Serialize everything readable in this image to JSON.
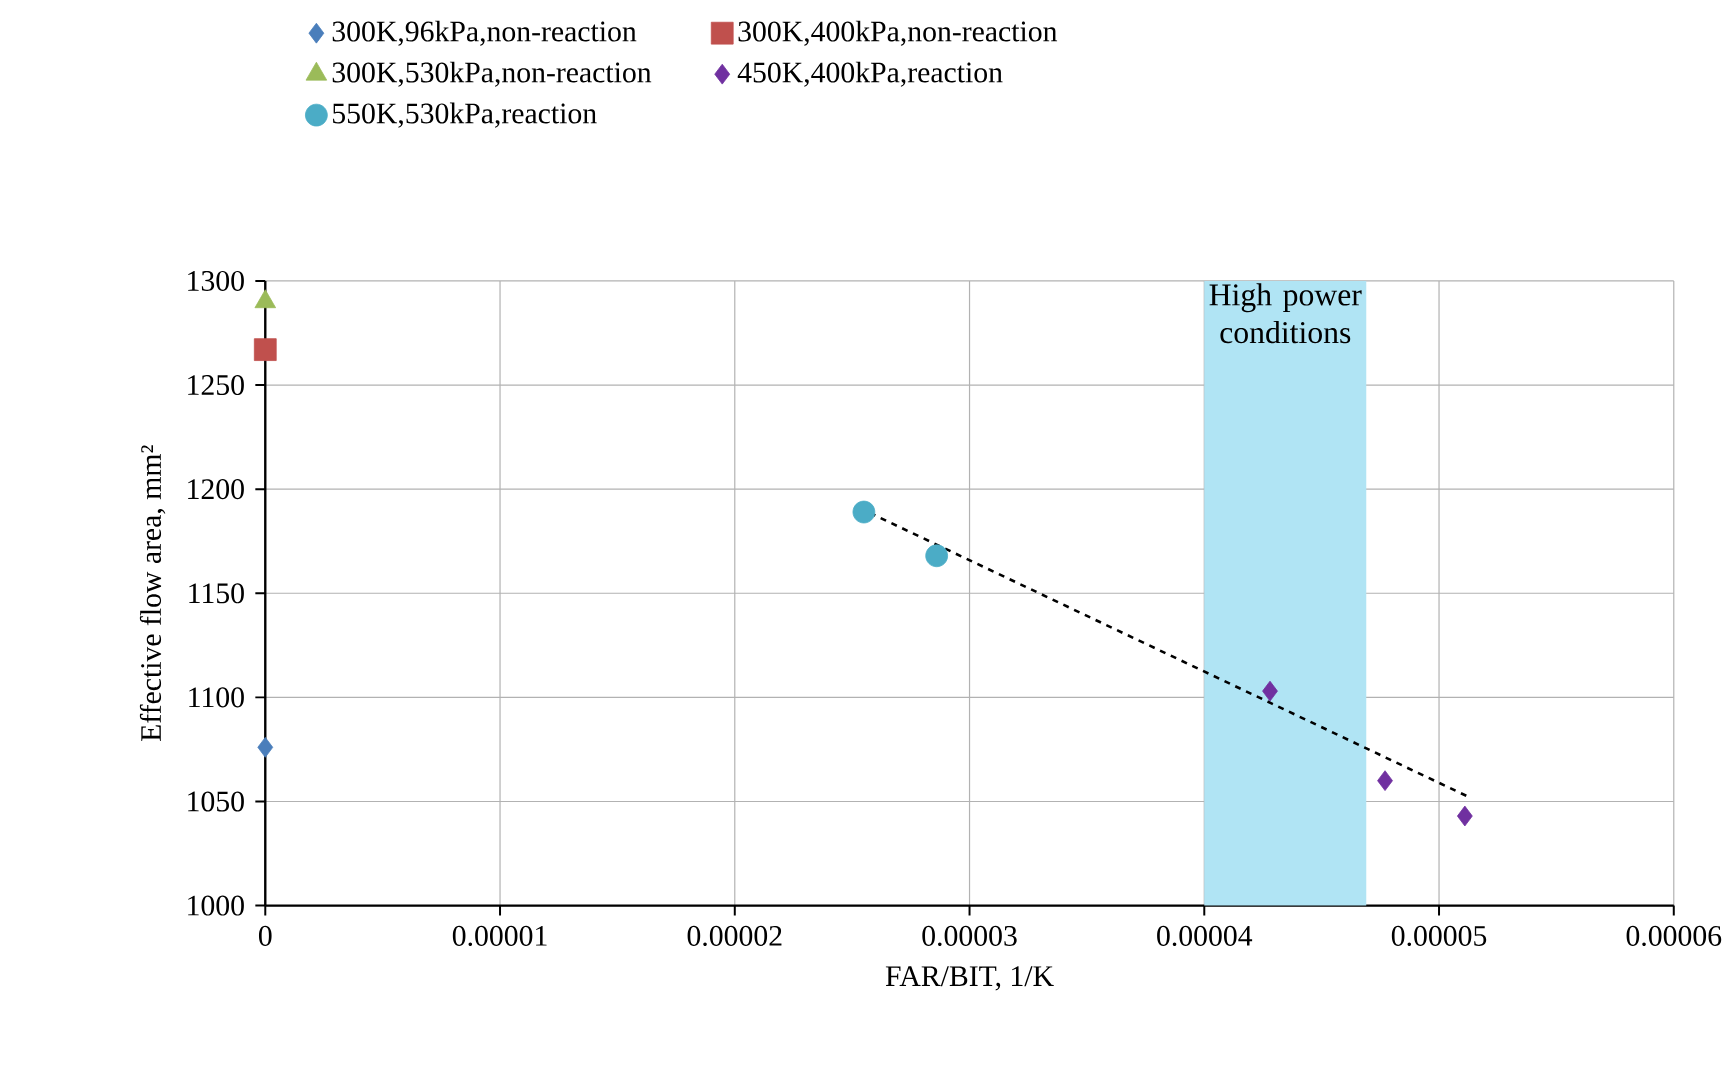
{
  "chart_data": {
    "type": "scatter",
    "xlabel": "FAR/BIT, 1/K",
    "ylabel": "Effective flow area, mm²",
    "xlim": [
      0,
      6e-05
    ],
    "ylim": [
      1000,
      1300
    ],
    "xticks": [
      0,
      {
        "value": 1e-05,
        "label": "0.00001"
      },
      {
        "value": 2e-05,
        "label": "0.00002"
      },
      {
        "value": 3e-05,
        "label": "0.00003"
      },
      {
        "value": 4e-05,
        "label": "0.00004"
      },
      {
        "value": 5e-05,
        "label": "0.00005"
      },
      {
        "value": 6e-05,
        "label": "0.00006"
      }
    ],
    "yticks": [
      1000,
      1050,
      1100,
      1150,
      1200,
      1250,
      1300
    ],
    "grid": true,
    "legend": "top",
    "series": [
      {
        "name": "300K,96kPa,non-reaction",
        "color": "#4a7ebb",
        "marker": "diamond",
        "x": [
          0
        ],
        "values": [
          1076
        ]
      },
      {
        "name": "300K,400kPa,non-reaction",
        "color": "#c0504d",
        "marker": "square",
        "x": [
          0
        ],
        "values": [
          1267
        ]
      },
      {
        "name": "300K,530kPa,non-reaction",
        "color": "#9bbb59",
        "marker": "triangle",
        "x": [
          0
        ],
        "values": [
          1290
        ]
      },
      {
        "name": "450K,400kPa,reaction",
        "color": "#7030a0",
        "marker": "diamond",
        "x": [
          4.28e-05,
          4.77e-05,
          5.11e-05
        ],
        "values": [
          1103,
          1060,
          1043
        ]
      },
      {
        "name": "550K,530kPa,reaction",
        "color": "#4bacc6",
        "marker": "circle",
        "x": [
          2.55e-05,
          2.86e-05
        ],
        "values": [
          1189,
          1168
        ]
      },
      {
        "type": "line",
        "color": "#000000",
        "marker": "none",
        "line_style": "dashed",
        "x": [
          2.53e-05,
          5.13e-05
        ],
        "values": [
          1191,
          1052
        ]
      }
    ],
    "bands": [
      {
        "axis": "x",
        "from": 4e-05,
        "to": 4.69e-05,
        "label": "High power conditions",
        "color": "#b0e4f4"
      }
    ]
  }
}
